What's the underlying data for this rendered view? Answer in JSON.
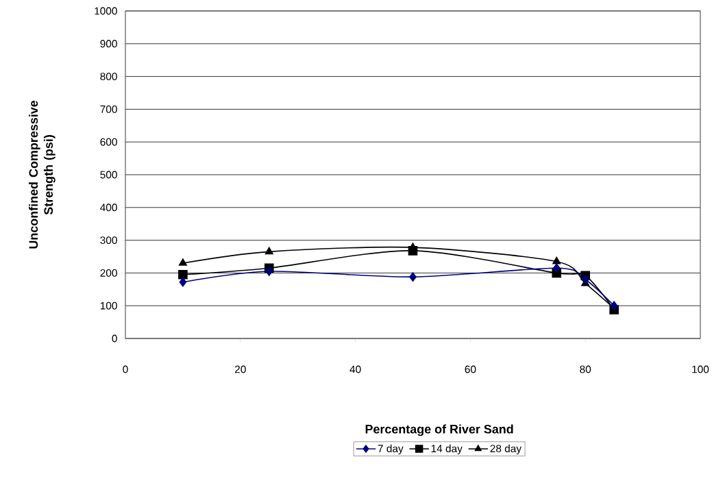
{
  "chart_data": {
    "type": "line",
    "xlabel": "Percentage of River Sand",
    "ylabel": "Unconfined Compressive Strength (psi)",
    "x": [
      10,
      25,
      50,
      75,
      80,
      85
    ],
    "series": [
      {
        "name": "7 day",
        "color": "#000080",
        "marker": "diamond",
        "values": [
          172,
          205,
          188,
          215,
          180,
          100
        ]
      },
      {
        "name": "14 day",
        "color": "#000000",
        "marker": "square",
        "values": [
          195,
          215,
          268,
          200,
          192,
          88
        ]
      },
      {
        "name": "28 day",
        "color": "#000000",
        "marker": "triangle",
        "values": [
          230,
          265,
          278,
          235,
          168,
          92
        ]
      }
    ],
    "xlim": [
      0,
      100
    ],
    "xticks": [
      0,
      20,
      40,
      60,
      80,
      100
    ],
    "ylim": [
      0,
      1000
    ],
    "yticks": [
      0,
      100,
      200,
      300,
      400,
      500,
      600,
      700,
      800,
      900,
      1000
    ],
    "grid": "y",
    "legend": "bottom",
    "line_style": "solid"
  }
}
